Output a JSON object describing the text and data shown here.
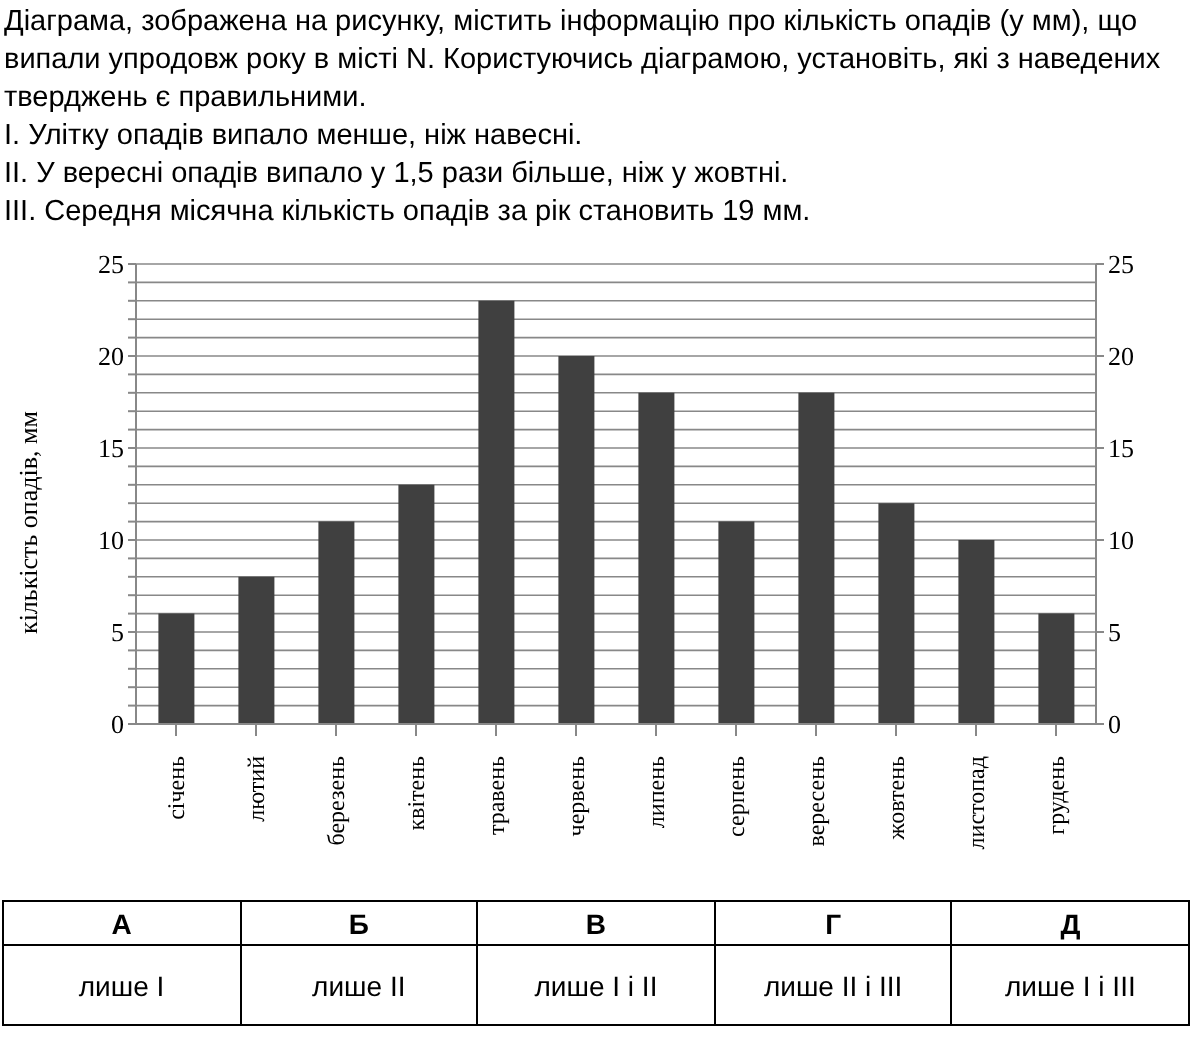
{
  "chart_data": {
    "type": "bar",
    "title": "Діаграма, зображена на рисунку, містить інформацію про кількість опадів (у мм), що випали упродовж року в місті N. Користуючись діаграмою, установіть, які з наведених тверджень є правильними.\nI. Улітку опадів випало менше, ніж навесні.\nII. У вересні опадів випало у 1,5 рази більше, ніж у жовтні.\nIII. Середня місячна кількість опадів за рік становить 19 мм.",
    "ylabel": "кількість опадів, мм",
    "categories": [
      "січень",
      "лютий",
      "березень",
      "квітень",
      "травень",
      "червень",
      "липень",
      "серпень",
      "вересень",
      "жовтень",
      "листопад",
      "грудень"
    ],
    "values": [
      6,
      8,
      11,
      13,
      23,
      20,
      18,
      11,
      18,
      12,
      10,
      6
    ],
    "color": "#404040",
    "ylim": [
      0,
      25
    ],
    "yticks": [
      0,
      {
        "value": 1,
        "label": null
      },
      {
        "value": 2,
        "label": null
      },
      {
        "value": 3,
        "label": null
      },
      {
        "value": 4,
        "label": null
      },
      5,
      {
        "value": 6,
        "label": null
      },
      {
        "value": 7,
        "label": null
      },
      {
        "value": 8,
        "label": null
      },
      {
        "value": 9,
        "label": null
      },
      10,
      {
        "value": 11,
        "label": null
      },
      {
        "value": 12,
        "label": null
      },
      {
        "value": 13,
        "label": null
      },
      {
        "value": 14,
        "label": null
      },
      15,
      {
        "value": 16,
        "label": null
      },
      {
        "value": 17,
        "label": null
      },
      {
        "value": 18,
        "label": null
      },
      {
        "value": 19,
        "label": null
      },
      20,
      {
        "value": 21,
        "label": null
      },
      {
        "value": 22,
        "label": null
      },
      {
        "value": 23,
        "label": null
      },
      {
        "value": 24,
        "label": null
      },
      25
    ],
    "y2lim": [
      0,
      25
    ],
    "y2ticks": [
      0,
      5,
      10,
      15,
      20,
      25
    ],
    "grid": "y",
    "annotations": [
      "А",
      "Б",
      "В",
      "Г",
      "Д",
      "лише I",
      "лише II",
      "лише I і II",
      "лише II і III",
      "лише I і III"
    ]
  }
}
